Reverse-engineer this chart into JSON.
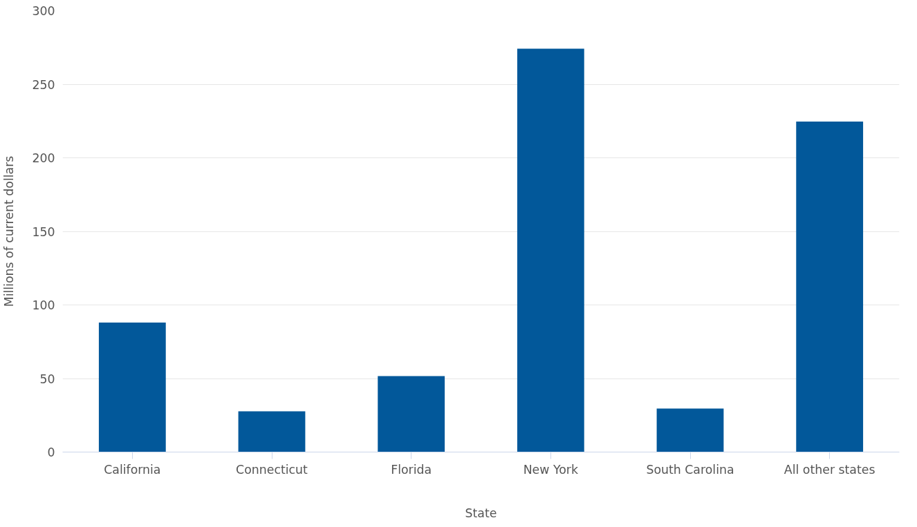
{
  "chart_data": {
    "type": "bar",
    "xlabel": "State",
    "ylabel": "Millions of current dollars",
    "categories": [
      "California",
      "Connecticut",
      "Florida",
      "New York",
      "South Carolina",
      "All other states"
    ],
    "values": [
      88,
      27.7,
      51.6,
      274.2,
      29.6,
      224.6
    ],
    "color": "#02589a",
    "ylim": [
      0,
      300
    ],
    "yticks": [
      0,
      50,
      100,
      150,
      200,
      250,
      300
    ],
    "grid": "y"
  }
}
